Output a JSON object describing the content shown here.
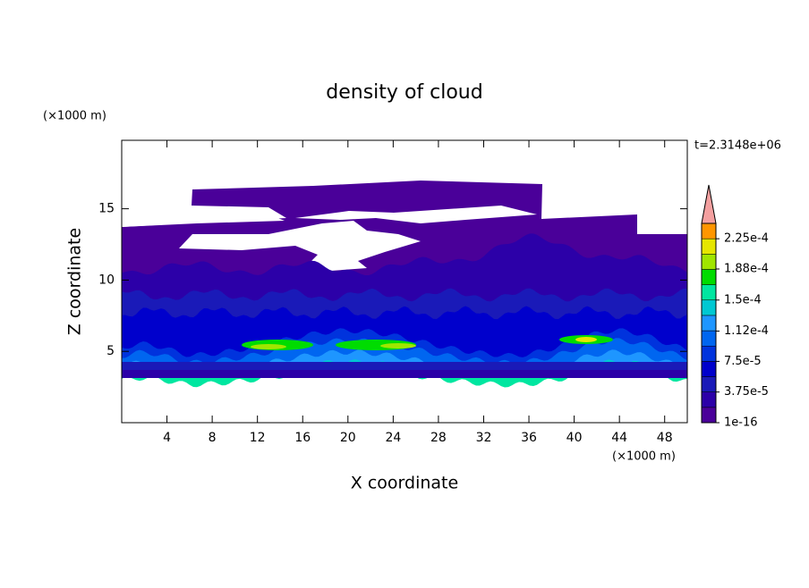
{
  "chart_data": {
    "type": "contour",
    "title": "density of cloud",
    "x_unit": "(×1000 m)",
    "y_unit": "(×1000 m)",
    "time_label": "t=2.3148e+06",
    "xlabel": "X coordinate",
    "ylabel": "Z coordinate",
    "xlim": [
      0,
      50
    ],
    "ylim": [
      0,
      19.8
    ],
    "xticks": [
      4,
      8,
      12,
      16,
      20,
      24,
      28,
      32,
      36,
      40,
      44,
      48
    ],
    "yticks": [
      5,
      10,
      15
    ],
    "levels": [
      1e-16,
      1.875e-05,
      3.75e-05,
      5.625e-05,
      7.5e-05,
      9.375e-05,
      0.0001125,
      0.00013125,
      0.00015,
      0.00016875,
      0.0001875,
      0.00020625,
      0.000225,
      0.00024375
    ],
    "colors": [
      "#4a0099",
      "#2c00a8",
      "#1a1ab8",
      "#0000cc",
      "#0033dd",
      "#0066f0",
      "#1e96ff",
      "#00c8d2",
      "#00e6a0",
      "#00dc00",
      "#a0e600",
      "#e6e600",
      "#ff9600"
    ],
    "extend_color": "#f4a0a0",
    "colorbar_ticks": [
      {
        "value": 1e-16,
        "label": "1e-16"
      },
      {
        "value": 3.75e-05,
        "label": "3.75e-5"
      },
      {
        "value": 7.5e-05,
        "label": "7.5e-5"
      },
      {
        "value": 0.000112,
        "label": "1.12e-4"
      },
      {
        "value": 0.00015,
        "label": "1.5e-4"
      },
      {
        "value": 0.000188,
        "label": "1.88e-4"
      },
      {
        "value": 0.000225,
        "label": "2.25e-4"
      }
    ]
  }
}
